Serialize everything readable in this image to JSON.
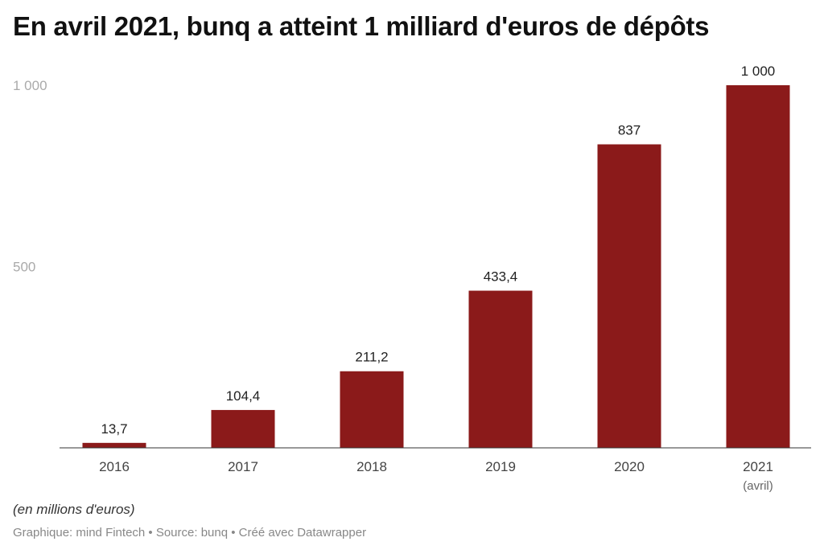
{
  "chart_data": {
    "type": "bar",
    "title": "En avril 2021, bunq a atteint 1 milliard d'euros de dépôts",
    "categories": [
      "2016",
      "2017",
      "2018",
      "2019",
      "2020",
      "2021"
    ],
    "category_sublabels": [
      "",
      "",
      "",
      "",
      "",
      "(avril)"
    ],
    "values": [
      13.7,
      104.4,
      211.2,
      433.4,
      837,
      1000
    ],
    "value_labels": [
      "13,7",
      "104,4",
      "211,2",
      "433,4",
      "837",
      "1 000"
    ],
    "yticks": [
      {
        "value": 500,
        "label": "500"
      },
      {
        "value": 1000,
        "label": "1 000"
      }
    ],
    "ylim": [
      0,
      1000
    ],
    "grid": false,
    "bar_color": "#8b1a1a",
    "unit_note": "(en millions d'euros)"
  },
  "footer": "Graphique: mind Fintech • Source: bunq • Créé avec Datawrapper"
}
